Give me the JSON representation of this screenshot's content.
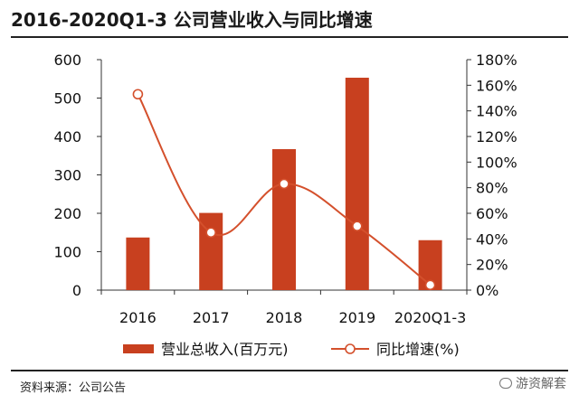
{
  "header": {
    "title": "2016-2020Q1-3 公司营业收入与同比增速"
  },
  "footer": {
    "source": "资料来源：公司公告",
    "watermark": "游资解套"
  },
  "chart_data": {
    "type": "bar",
    "categories": [
      "2016",
      "2017",
      "2018",
      "2019",
      "2020Q1-3"
    ],
    "series": [
      {
        "name": "营业总收入(百万元)",
        "type": "bar",
        "axis": "left",
        "color": "#c8401f",
        "values": [
          137,
          201,
          367,
          553,
          130
        ]
      },
      {
        "name": "同比增速(%)",
        "type": "line",
        "axis": "right",
        "color": "#d4502c",
        "values": [
          1.53,
          0.45,
          0.83,
          0.5,
          0.04
        ]
      }
    ],
    "y_left": {
      "ylim": [
        0,
        600
      ],
      "ticks": [
        0,
        100,
        200,
        300,
        400,
        500,
        600
      ]
    },
    "y_right": {
      "ylim": [
        0,
        1.8
      ],
      "ticks": [
        0,
        0.2,
        0.4,
        0.6,
        0.8,
        1.0,
        1.2,
        1.4,
        1.6,
        1.8
      ],
      "tick_labels": [
        "0%",
        "20%",
        "40%",
        "60%",
        "80%",
        "100%",
        "120%",
        "140%",
        "160%",
        "180%"
      ]
    },
    "legend_placement": "bottom",
    "grid": false
  }
}
